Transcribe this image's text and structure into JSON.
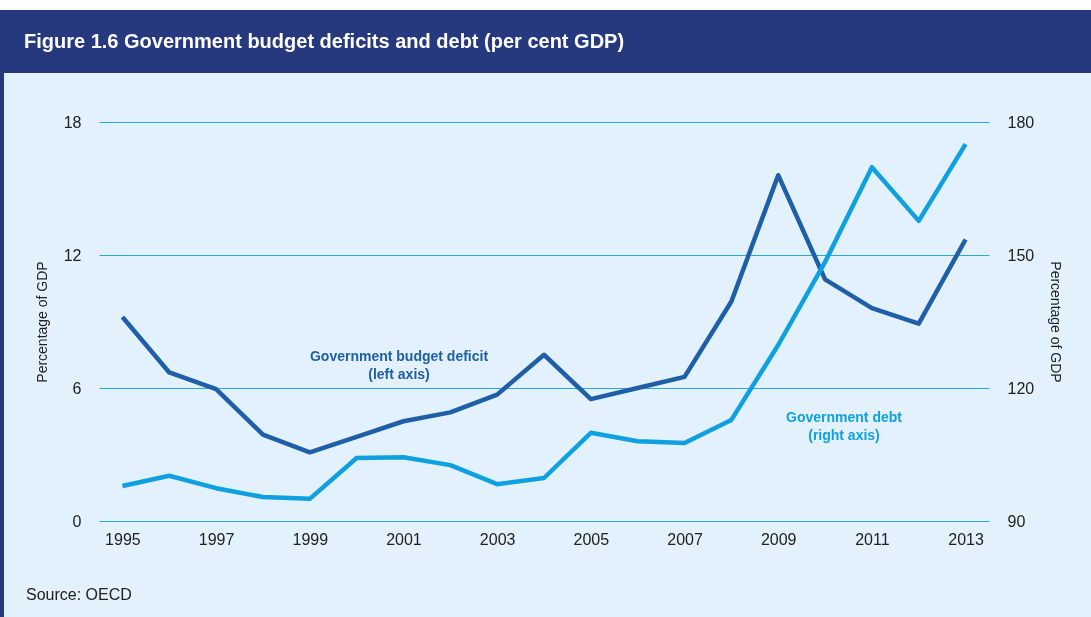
{
  "chart_data": {
    "type": "line",
    "title": "Figure 1.6  Government budget deficits and debt (per cent GDP)",
    "x": [
      1995,
      1996,
      1997,
      1998,
      1999,
      2000,
      2001,
      2002,
      2003,
      2004,
      2005,
      2006,
      2007,
      2008,
      2009,
      2010,
      2011,
      2012,
      2013
    ],
    "xlim": [
      1994.5,
      2013.5
    ],
    "xticks": [
      1995,
      1997,
      1999,
      2001,
      2003,
      2005,
      2007,
      2009,
      2011,
      2013
    ],
    "ylabel": "Percentage of GDP",
    "y2label": "Percentage of GDP",
    "ylim": [
      0,
      18
    ],
    "yticks": [
      0,
      6,
      12,
      18
    ],
    "y2lim": [
      90,
      180
    ],
    "y2ticks": [
      90,
      120,
      150,
      180
    ],
    "grid": "y",
    "series": [
      {
        "name": "Government budget deficit (left axis)",
        "color": "#1f5fa8",
        "values": [
          9.2,
          6.7,
          5.95,
          3.9,
          3.1,
          3.8,
          4.5,
          4.9,
          5.7,
          7.5,
          5.5,
          6.0,
          6.5,
          9.9,
          15.6,
          10.9,
          9.6,
          8.9,
          12.7
        ]
      },
      {
        "name": "Government debt (right axis)",
        "color": "#0fa0df",
        "axis": "y2",
        "values": [
          97.9,
          100.2,
          97.4,
          95.4,
          95.0,
          104.2,
          104.4,
          102.6,
          98.3,
          99.7,
          109.9,
          108.0,
          107.6,
          112.8,
          129.7,
          148.4,
          169.8,
          157.7,
          175.0
        ]
      }
    ],
    "annotations": [
      "Source: OECD"
    ]
  }
}
